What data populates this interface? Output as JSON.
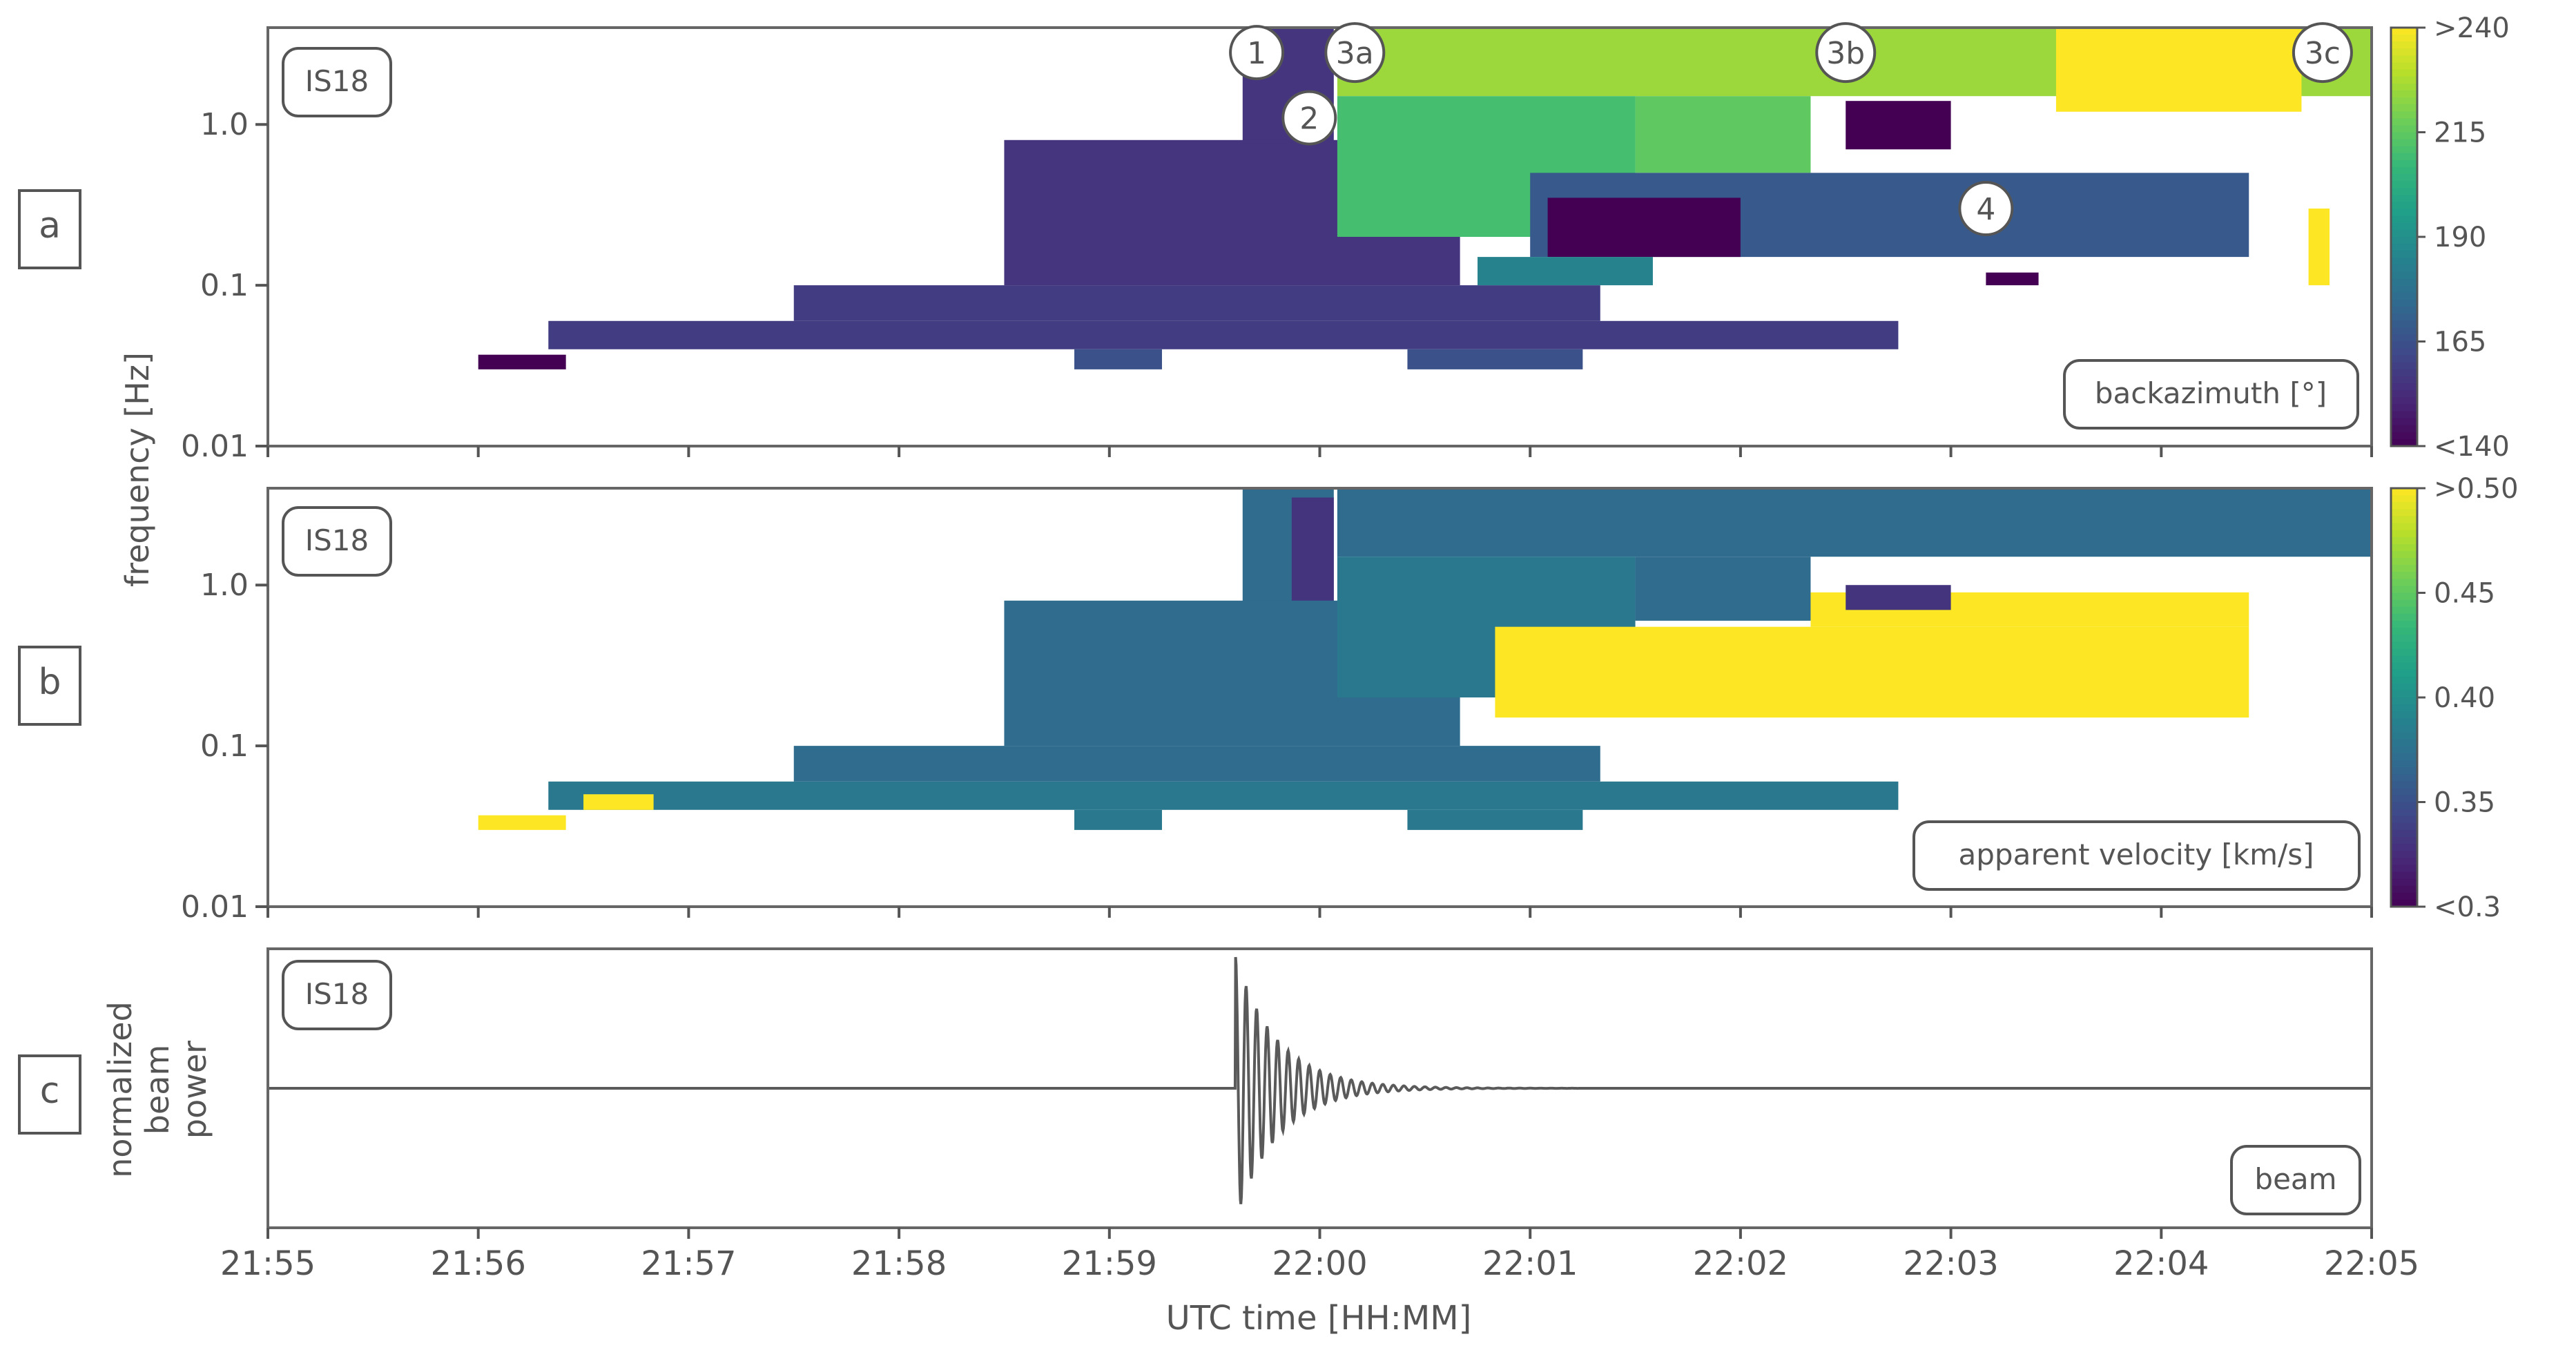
{
  "figure": {
    "x_axis_label": "UTC time [HH:MM]",
    "x_ticks": [
      "21:55",
      "21:56",
      "21:57",
      "21:58",
      "21:59",
      "22:00",
      "22:01",
      "22:02",
      "22:03",
      "22:04",
      "22:05"
    ],
    "freq_axis_label": "frequency [Hz]",
    "freq_ticks": [
      "1.0",
      "0.1",
      "0.01"
    ],
    "beam_axis_label_lines": [
      "normalized",
      "beam",
      "power"
    ]
  },
  "chart_data": [
    {
      "type": "heatmap",
      "panel_label": "a",
      "station": "IS18",
      "inset_label": "backazimuth [°]",
      "x_range": [
        "21:55",
        "22:05"
      ],
      "y_scale": "log",
      "y_range_hz": [
        0.01,
        4.0
      ],
      "colorbar": {
        "ticks": [
          ">240",
          "215",
          "190",
          "165",
          "<140"
        ],
        "values": [
          240,
          215,
          190,
          165,
          140
        ]
      },
      "annotations": [
        {
          "label": "1",
          "time": "21:59:42",
          "freq_hz": 2.8
        },
        {
          "label": "2",
          "time": "21:59:57",
          "freq_hz": 1.1
        },
        {
          "label": "3a",
          "time": "22:00:10",
          "freq_hz": 2.8
        },
        {
          "label": "3b",
          "time": "22:02:30",
          "freq_hz": 2.8
        },
        {
          "label": "3c",
          "time": "22:04:46",
          "freq_hz": 2.8
        },
        {
          "label": "4",
          "time": "22:03:10",
          "freq_hz": 0.3
        }
      ],
      "regions": [
        {
          "t0": "21:59:38",
          "t1": "22:00:04",
          "f0": 0.25,
          "f1": 4.0,
          "value": 155
        },
        {
          "t0": "21:58:30",
          "t1": "22:00:40",
          "f0": 0.1,
          "f1": 0.8,
          "value": 155
        },
        {
          "t0": "21:57:30",
          "t1": "22:01:20",
          "f0": 0.06,
          "f1": 0.1,
          "value": 158
        },
        {
          "t0": "21:56:20",
          "t1": "22:02:45",
          "f0": 0.04,
          "f1": 0.06,
          "value": 158
        },
        {
          "t0": "21:56:00",
          "t1": "21:56:25",
          "f0": 0.03,
          "f1": 0.037,
          "value": 140
        },
        {
          "t0": "21:58:50",
          "t1": "21:59:15",
          "f0": 0.03,
          "f1": 0.04,
          "value": 165
        },
        {
          "t0": "22:00:25",
          "t1": "22:01:15",
          "f0": 0.03,
          "f1": 0.04,
          "value": 165
        },
        {
          "t0": "22:00:05",
          "t1": "22:05:00",
          "f0": 1.5,
          "f1": 4.0,
          "value": 225
        },
        {
          "t0": "22:00:05",
          "t1": "22:01:30",
          "f0": 0.2,
          "f1": 1.5,
          "value": 210
        },
        {
          "t0": "22:01:30",
          "t1": "22:02:20",
          "f0": 0.5,
          "f1": 1.5,
          "value": 215
        },
        {
          "t0": "22:03:30",
          "t1": "22:04:40",
          "f0": 1.2,
          "f1": 4.0,
          "value": 240
        },
        {
          "t0": "22:01:00",
          "t1": "22:04:25",
          "f0": 0.15,
          "f1": 0.5,
          "value": 168
        },
        {
          "t0": "22:01:05",
          "t1": "22:02:00",
          "f0": 0.15,
          "f1": 0.35,
          "value": 140
        },
        {
          "t0": "22:02:30",
          "t1": "22:03:00",
          "f0": 0.7,
          "f1": 1.4,
          "value": 140
        },
        {
          "t0": "22:00:45",
          "t1": "22:01:35",
          "f0": 0.1,
          "f1": 0.15,
          "value": 185
        },
        {
          "t0": "22:03:10",
          "t1": "22:03:25",
          "f0": 0.1,
          "f1": 0.12,
          "value": 140
        },
        {
          "t0": "22:04:42",
          "t1": "22:04:48",
          "f0": 0.1,
          "f1": 0.3,
          "value": 240
        }
      ]
    },
    {
      "type": "heatmap",
      "panel_label": "b",
      "station": "IS18",
      "inset_label": "apparent velocity [km/s]",
      "x_range": [
        "21:55",
        "22:05"
      ],
      "y_scale": "log",
      "y_range_hz": [
        0.01,
        4.0
      ],
      "colorbar": {
        "ticks": [
          ">0.50",
          "0.45",
          "0.40",
          "0.35",
          "<0.3"
        ],
        "values": [
          0.5,
          0.45,
          0.4,
          0.35,
          0.3
        ]
      },
      "regions": [
        {
          "t0": "21:59:38",
          "t1": "22:00:04",
          "f0": 0.25,
          "f1": 4.0,
          "value": 0.37
        },
        {
          "t0": "21:59:52",
          "t1": "22:00:04",
          "f0": 0.6,
          "f1": 3.5,
          "value": 0.33
        },
        {
          "t0": "21:58:30",
          "t1": "22:00:40",
          "f0": 0.1,
          "f1": 0.8,
          "value": 0.37
        },
        {
          "t0": "21:57:30",
          "t1": "22:01:20",
          "f0": 0.06,
          "f1": 0.1,
          "value": 0.37
        },
        {
          "t0": "21:56:20",
          "t1": "22:02:45",
          "f0": 0.04,
          "f1": 0.06,
          "value": 0.38
        },
        {
          "t0": "21:56:00",
          "t1": "21:56:25",
          "f0": 0.03,
          "f1": 0.037,
          "value": 0.5
        },
        {
          "t0": "21:56:30",
          "t1": "21:56:50",
          "f0": 0.04,
          "f1": 0.05,
          "value": 0.5
        },
        {
          "t0": "21:58:50",
          "t1": "21:59:15",
          "f0": 0.03,
          "f1": 0.04,
          "value": 0.38
        },
        {
          "t0": "22:00:25",
          "t1": "22:01:15",
          "f0": 0.03,
          "f1": 0.04,
          "value": 0.38
        },
        {
          "t0": "22:00:05",
          "t1": "22:05:00",
          "f0": 1.5,
          "f1": 4.0,
          "value": 0.37
        },
        {
          "t0": "22:00:05",
          "t1": "22:01:30",
          "f0": 0.2,
          "f1": 1.5,
          "value": 0.38
        },
        {
          "t0": "22:01:30",
          "t1": "22:02:20",
          "f0": 0.6,
          "f1": 1.5,
          "value": 0.37
        },
        {
          "t0": "22:00:50",
          "t1": "22:04:25",
          "f0": 0.15,
          "f1": 0.55,
          "value": 0.5
        },
        {
          "t0": "22:02:20",
          "t1": "22:04:25",
          "f0": 0.55,
          "f1": 0.9,
          "value": 0.5
        },
        {
          "t0": "22:02:30",
          "t1": "22:03:00",
          "f0": 0.7,
          "f1": 1.0,
          "value": 0.33
        }
      ]
    },
    {
      "type": "line",
      "panel_label": "c",
      "station": "IS18",
      "inset_label": "beam",
      "x_range": [
        "21:55",
        "22:05"
      ],
      "series": [
        {
          "model": "damped oscillation",
          "onset_time": "21:59:36",
          "peak_amplitude": 1.0,
          "decay_time_s": 12,
          "period_s": 3
        }
      ]
    }
  ],
  "colors": {
    "viridis": [
      "#440154",
      "#482878",
      "#3e4989",
      "#31688e",
      "#26828e",
      "#1f9e89",
      "#35b779",
      "#6ece58",
      "#b5de2b",
      "#fde725"
    ],
    "axis": "#555555",
    "text": "#555555",
    "trace": "#5a5a5a"
  }
}
